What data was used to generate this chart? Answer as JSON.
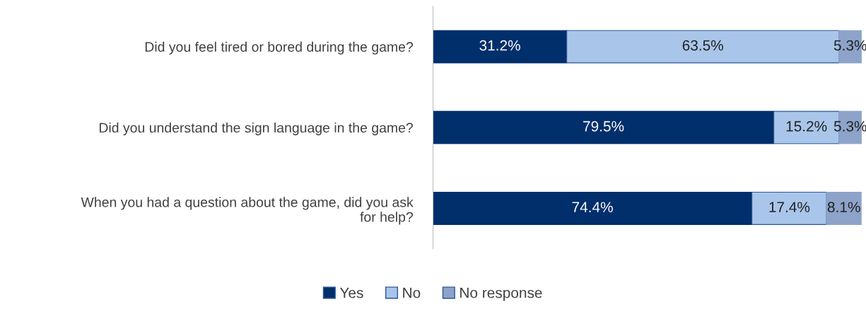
{
  "chart_data": {
    "type": "bar",
    "orientation": "horizontal",
    "stacked": true,
    "legend": "bottom",
    "grid": false,
    "categories": [
      "Did you feel tired or bored during the game?",
      "Did you understand the sign language in the game?",
      "When you had a question about the game, did you ask for help?"
    ],
    "series": [
      {
        "name": "Yes",
        "color": "#002f6c",
        "values": [
          31.2,
          79.5,
          74.4
        ],
        "value_labels": [
          "31.2%",
          "79.5%",
          "74.4%"
        ]
      },
      {
        "name": "No",
        "color": "#a9c6ea",
        "values": [
          63.5,
          15.2,
          17.4
        ],
        "value_labels": [
          "63.5%",
          "15.2%",
          "17.4%"
        ]
      },
      {
        "name": "No response",
        "color": "#8da3c9",
        "values": [
          5.3,
          5.3,
          8.1
        ],
        "value_labels": [
          "5.3%",
          "5.3%",
          "8.1%"
        ]
      }
    ]
  }
}
